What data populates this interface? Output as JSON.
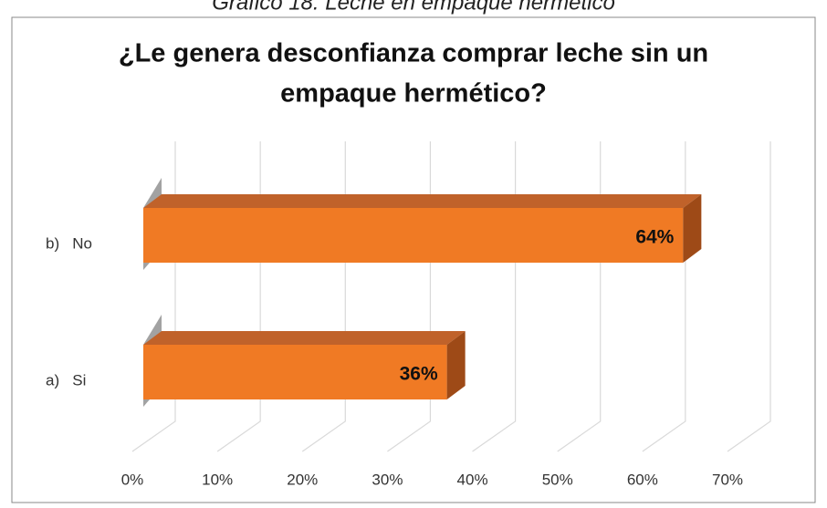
{
  "caption": "Gráfico 18: Leche en empaque hermético",
  "chart_data": {
    "type": "bar3d",
    "title": [
      "¿Le genera desconfianza comprar leche sin un",
      "empaque hermético?"
    ],
    "categories": [
      "b)   No",
      "a)   Si"
    ],
    "values": [
      64,
      36
    ],
    "value_labels": [
      "64%",
      "36%"
    ],
    "color": "#f07a24",
    "xlim": [
      0,
      70
    ],
    "xticks": [
      {
        "value": 0,
        "label": "0%"
      },
      {
        "value": 10,
        "label": "10%"
      },
      {
        "value": 20,
        "label": "20%"
      },
      {
        "value": 30,
        "label": "30%"
      },
      {
        "value": 40,
        "label": "40%"
      },
      {
        "value": 50,
        "label": "50%"
      },
      {
        "value": 60,
        "label": "60%"
      },
      {
        "value": 70,
        "label": "70%"
      }
    ],
    "grid": true
  }
}
